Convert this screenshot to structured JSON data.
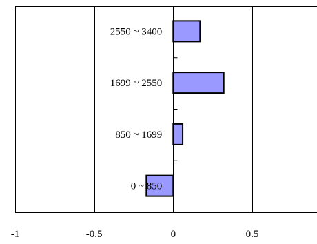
{
  "chart_data": {
    "type": "bar",
    "orientation": "horizontal",
    "categories": [
      "2550 ~ 3400",
      "1699 ~ 2550",
      "850 ~ 1699",
      "0 ~ 850"
    ],
    "values": [
      0.17,
      0.32,
      0.06,
      -0.17
    ],
    "x_ticks": [
      -1,
      -0.5,
      0,
      0.5
    ],
    "x_tick_labels": [
      "-1",
      "-0.5",
      "0",
      "0.5"
    ],
    "xlim": [
      -1,
      0.91
    ],
    "grid": "vertical",
    "legend": "none",
    "bar_color": "#9999ff",
    "bar_edge_color": "#000000"
  }
}
